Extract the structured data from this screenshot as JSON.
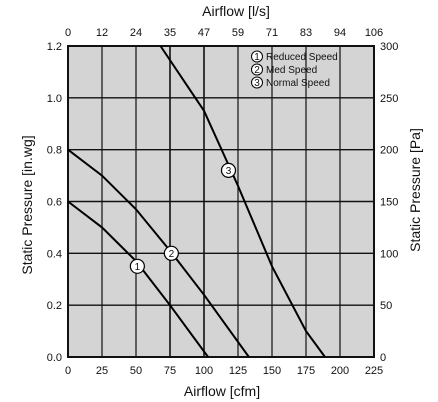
{
  "chart_data": {
    "type": "line",
    "title": "",
    "xlabel_bottom": "Airflow [cfm]",
    "xlabel_top": "Airflow [l/s]",
    "ylabel_left": "Static Pressure [in.wg]",
    "ylabel_right": "Static Pressure [Pa]",
    "xlim": [
      0,
      225
    ],
    "ylim": [
      0,
      1.2
    ],
    "x_ticks_bottom": [
      "0",
      "25",
      "50",
      "75",
      "100",
      "125",
      "150",
      "175",
      "200",
      "225"
    ],
    "x_ticks_top": [
      "0",
      "12",
      "24",
      "35",
      "47",
      "59",
      "71",
      "83",
      "94",
      "106"
    ],
    "y_ticks_left": [
      "0.0",
      "0.2",
      "0.4",
      "0.6",
      "0.8",
      "1.0",
      "1.2"
    ],
    "y_ticks_right": [
      "0",
      "50",
      "100",
      "150",
      "200",
      "250",
      "300"
    ],
    "grid": true,
    "legend_position": "top-right",
    "series": [
      {
        "name": "Reduced Speed",
        "marker_label": "1",
        "marker_at": {
          "x": 51,
          "y": 0.35
        },
        "points": [
          {
            "x": 0,
            "y": 0.6
          },
          {
            "x": 25,
            "y": 0.5
          },
          {
            "x": 50,
            "y": 0.37
          },
          {
            "x": 75,
            "y": 0.2
          },
          {
            "x": 103,
            "y": 0.0
          }
        ]
      },
      {
        "name": "Med Speed",
        "marker_label": "2",
        "marker_at": {
          "x": 76,
          "y": 0.4
        },
        "points": [
          {
            "x": 0,
            "y": 0.8
          },
          {
            "x": 25,
            "y": 0.7
          },
          {
            "x": 50,
            "y": 0.57
          },
          {
            "x": 75,
            "y": 0.41
          },
          {
            "x": 100,
            "y": 0.24
          },
          {
            "x": 133,
            "y": 0.0
          }
        ]
      },
      {
        "name": "Normal Speed",
        "marker_label": "3",
        "marker_at": {
          "x": 118,
          "y": 0.72
        },
        "points": [
          {
            "x": 68,
            "y": 1.2
          },
          {
            "x": 100,
            "y": 0.95
          },
          {
            "x": 125,
            "y": 0.66
          },
          {
            "x": 150,
            "y": 0.35
          },
          {
            "x": 175,
            "y": 0.1
          },
          {
            "x": 189,
            "y": 0.0
          }
        ]
      }
    ]
  },
  "colors": {
    "plot_background": "#d4d4d4",
    "grid": "#111111",
    "line": "#000000",
    "marker_fill": "#ffffff"
  }
}
